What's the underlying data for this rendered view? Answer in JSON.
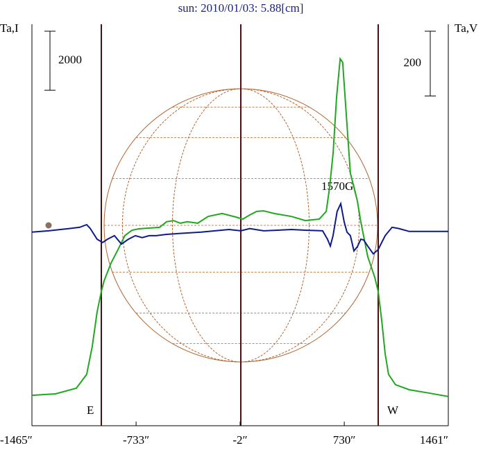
{
  "chart_data": {
    "type": "line",
    "title": "sun: 2010/01/03: 5.88[cm]",
    "y_label": "Ta,I",
    "y2_label": "Ta,V",
    "xlim": [
      -1465,
      1461
    ],
    "xticks": [
      {
        "value": -1465,
        "label": "-1465″"
      },
      {
        "value": -733,
        "label": "-733″"
      },
      {
        "value": -2,
        "label": "-2″"
      },
      {
        "value": 730,
        "label": "730″"
      },
      {
        "value": 1461,
        "label": "1461″"
      }
    ],
    "ylim": [
      -1000,
      12600
    ],
    "y2lim": [
      -600,
      640
    ],
    "scale_bar_y": 2000,
    "scale_bar_y2": 200,
    "annotations": [
      "E",
      "W",
      "1570G"
    ],
    "series": [
      {
        "color": "#1fa81f",
        "x": [
          -1465,
          -1299,
          -1153,
          -1080,
          -1041,
          -1007,
          -977,
          -958,
          -910,
          -860,
          -812,
          -763,
          -714,
          -568,
          -519,
          -470,
          -422,
          -373,
          -300,
          -227,
          -129,
          -32,
          17,
          66,
          115,
          163,
          237,
          359,
          456,
          554,
          603,
          627,
          652,
          676,
          701,
          719,
          749,
          773,
          798,
          822,
          846,
          895,
          944,
          968,
          992,
          1017,
          1041,
          1090,
          1187,
          1334,
          1461
        ],
        "values": [
          30,
          80,
          270,
          740,
          1680,
          2850,
          3560,
          3910,
          4500,
          4970,
          5440,
          5620,
          5670,
          5720,
          5910,
          5950,
          5860,
          5910,
          5860,
          6090,
          6190,
          6070,
          6000,
          6140,
          6260,
          6280,
          6190,
          6090,
          5950,
          6000,
          6260,
          7080,
          8260,
          10130,
          11430,
          11310,
          9200,
          7550,
          7080,
          6610,
          5910,
          4730,
          4030,
          3560,
          2620,
          1440,
          740,
          390,
          220,
          100,
          -10
        ]
      },
      {
        "color": "#0d1a8c",
        "axis": "y2",
        "x": [
          -1465,
          -1348,
          -1202,
          -1129,
          -1080,
          -1055,
          -1007,
          -968,
          -934,
          -885,
          -836,
          -787,
          -738,
          -690,
          -641,
          -592,
          -519,
          -422,
          -275,
          -178,
          -80,
          3,
          66,
          163,
          261,
          359,
          456,
          578,
          612,
          632,
          651,
          680,
          705,
          729,
          749,
          773,
          798,
          822,
          846,
          866,
          895,
          934,
          968,
          1017,
          1066,
          1114,
          1187,
          1334,
          1461
        ],
        "values": [
          -2,
          2,
          9,
          13,
          21,
          9,
          -24,
          -34,
          -24,
          -13,
          -39,
          -24,
          -13,
          -19,
          -13,
          -13,
          -9,
          -6,
          -2,
          2,
          6,
          2,
          9,
          2,
          4,
          6,
          4,
          2,
          -24,
          -45,
          -13,
          62,
          86,
          30,
          -2,
          -13,
          -60,
          -47,
          -24,
          -26,
          -45,
          -69,
          -56,
          -13,
          13,
          9,
          0,
          0,
          0
        ]
      }
    ]
  }
}
